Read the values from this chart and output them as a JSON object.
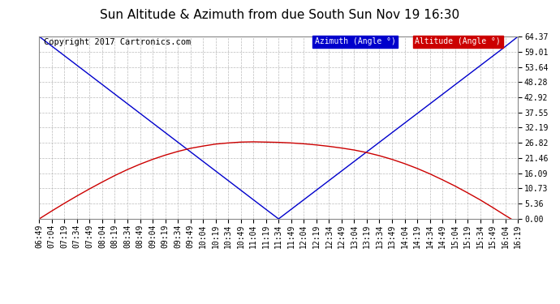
{
  "title": "Sun Altitude & Azimuth from due South Sun Nov 19 16:30",
  "copyright": "Copyright 2017 Cartronics.com",
  "y_ticks": [
    0.0,
    5.36,
    10.73,
    16.09,
    21.46,
    26.82,
    32.19,
    37.55,
    42.92,
    48.28,
    53.64,
    59.01,
    64.37
  ],
  "y_min": 0.0,
  "y_max": 64.37,
  "x_labels": [
    "06:49",
    "07:04",
    "07:19",
    "07:34",
    "07:49",
    "08:04",
    "08:19",
    "08:34",
    "08:49",
    "09:04",
    "09:19",
    "09:34",
    "09:49",
    "10:04",
    "10:19",
    "10:34",
    "10:49",
    "11:04",
    "11:19",
    "11:34",
    "11:49",
    "12:04",
    "12:19",
    "12:34",
    "12:49",
    "13:04",
    "13:19",
    "13:34",
    "13:49",
    "14:04",
    "14:19",
    "14:34",
    "14:49",
    "15:04",
    "15:19",
    "15:34",
    "15:49",
    "16:04",
    "16:19"
  ],
  "azimuth_values": [
    64.37,
    60.98,
    57.59,
    54.2,
    50.81,
    47.42,
    44.03,
    40.64,
    37.25,
    33.86,
    30.47,
    27.08,
    23.69,
    20.3,
    16.91,
    13.52,
    10.13,
    6.74,
    3.35,
    0.0,
    3.38,
    6.76,
    10.14,
    13.52,
    16.9,
    20.28,
    23.66,
    27.04,
    30.42,
    33.8,
    37.18,
    40.56,
    43.94,
    47.32,
    50.7,
    54.08,
    57.46,
    60.84,
    64.37
  ],
  "altitude_values": [
    0.0,
    2.8,
    5.5,
    8.1,
    10.6,
    13.0,
    15.3,
    17.4,
    19.3,
    21.0,
    22.5,
    23.8,
    24.9,
    25.7,
    26.4,
    26.8,
    27.1,
    27.2,
    27.1,
    27.0,
    26.8,
    26.5,
    26.1,
    25.6,
    25.0,
    24.3,
    23.4,
    22.3,
    21.0,
    19.5,
    17.8,
    15.9,
    13.8,
    11.6,
    9.2,
    6.7,
    4.0,
    1.2,
    -1.5
  ],
  "azimuth_color": "#0000cc",
  "altitude_color": "#cc0000",
  "background_color": "#ffffff",
  "grid_color": "#aaaaaa",
  "legend_azimuth_bg": "#0000cc",
  "legend_altitude_bg": "#cc0000",
  "legend_text_color": "#ffffff",
  "title_fontsize": 11,
  "tick_fontsize": 7,
  "copyright_fontsize": 7.5
}
